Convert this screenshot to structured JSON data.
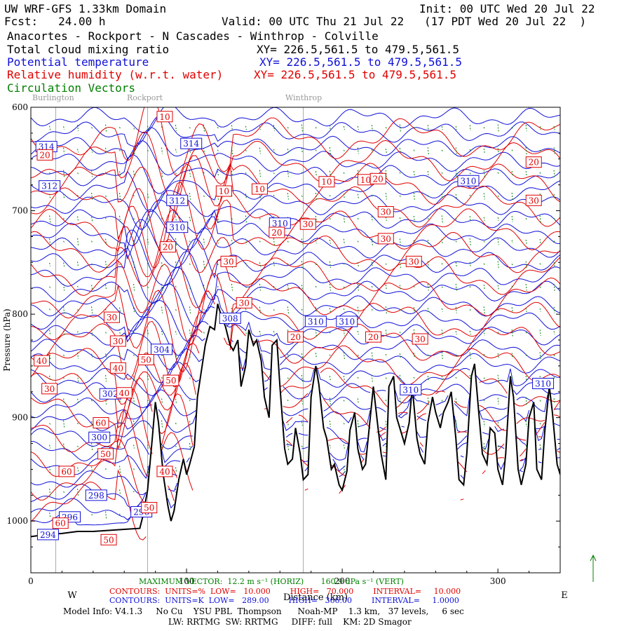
{
  "header": {
    "line1_left": "UW WRF-GFS 1.33km Domain",
    "line1_right": "Init: 00 UTC Wed 20 Jul 22",
    "line2_fcst": "Fcst:   24.00 h",
    "line2_valid": "Valid: 00 UTC Thu 21 Jul 22   (17 PDT Wed 20 Jul 22  )",
    "route": "Anacortes - Rockport - N Cascades - Winthrop - Colville",
    "fields": [
      {
        "label": "Total cloud mixing ratio",
        "xy": "XY= 226.5,561.5 to 479.5,561.5",
        "color": "#000000"
      },
      {
        "label": "Potential temperature",
        "xy": "XY= 226.5,561.5 to 479.5,561.5",
        "color": "#1010d8"
      },
      {
        "label": "Relative humidity (w.r.t. water)",
        "xy": "XY= 226.5,561.5 to 479.5,561.5",
        "color": "#e00000"
      },
      {
        "label": "Circulation Vectors",
        "xy": "",
        "color": "#008000"
      }
    ],
    "locations": [
      "Burlington",
      "Rockport",
      "Winthrop"
    ]
  },
  "chart_data": {
    "type": "line",
    "xlabel": "Distance (km)",
    "ylabel": "Pressure (hPa)",
    "xlim": [
      0,
      340
    ],
    "ylim": [
      1050,
      600
    ],
    "x_ticks": [
      "0",
      "100",
      "200",
      "300"
    ],
    "y_ticks": [
      "600",
      "700",
      "800",
      "900",
      "1000"
    ],
    "direction_left": "W",
    "direction_right": "E",
    "terrain_series": {
      "name": "terrain",
      "x": [
        0,
        10,
        20,
        30,
        40,
        50,
        60,
        70,
        72,
        75,
        78,
        80,
        82,
        85,
        88,
        90,
        92,
        95,
        98,
        100,
        102,
        105,
        107,
        110,
        112,
        115,
        118,
        120,
        122,
        125,
        128,
        130,
        133,
        135,
        138,
        140,
        143,
        145,
        148,
        150,
        153,
        155,
        158,
        160,
        163,
        165,
        168,
        170,
        173,
        175,
        178,
        180,
        183,
        185,
        188,
        190,
        193,
        195,
        198,
        200,
        203,
        205,
        208,
        210,
        213,
        215,
        218,
        220,
        223,
        225,
        228,
        230,
        233,
        235,
        238,
        240,
        243,
        245,
        248,
        250,
        253,
        255,
        258,
        260,
        263,
        265,
        268,
        270,
        273,
        275,
        278,
        280,
        283,
        285,
        288,
        290,
        293,
        295,
        298,
        300,
        303,
        305,
        308,
        310,
        313,
        315,
        318,
        320,
        323,
        325,
        328,
        330,
        333,
        335,
        338,
        340
      ],
      "y": [
        1015,
        1013,
        1012,
        1010,
        1010,
        1009,
        1008,
        1007,
        995,
        970,
        920,
        885,
        905,
        955,
        985,
        1000,
        990,
        960,
        940,
        955,
        945,
        928,
        880,
        850,
        830,
        812,
        815,
        790,
        800,
        812,
        830,
        835,
        825,
        870,
        850,
        815,
        830,
        825,
        845,
        880,
        900,
        830,
        825,
        870,
        930,
        945,
        940,
        910,
        935,
        960,
        955,
        880,
        850,
        868,
        910,
        920,
        950,
        945,
        965,
        970,
        952,
        912,
        895,
        930,
        950,
        945,
        900,
        870,
        910,
        935,
        960,
        870,
        860,
        900,
        915,
        925,
        905,
        870,
        920,
        935,
        945,
        905,
        880,
        895,
        910,
        895,
        885,
        875,
        920,
        960,
        965,
        935,
        860,
        848,
        900,
        935,
        945,
        910,
        915,
        950,
        965,
        935,
        860,
        880,
        950,
        965,
        945,
        900,
        885,
        950,
        960,
        915,
        870,
        895,
        945,
        955
      ]
    },
    "potential_temperature": {
      "units": "K",
      "low": 289.0,
      "high": 366.0,
      "interval": 1.0,
      "labels": [
        {
          "text": "314",
          "x": 10,
          "y": 638
        },
        {
          "text": "312",
          "x": 12,
          "y": 676
        },
        {
          "text": "314",
          "x": 103,
          "y": 635
        },
        {
          "text": "312",
          "x": 94,
          "y": 690
        },
        {
          "text": "310",
          "x": 94,
          "y": 716
        },
        {
          "text": "310",
          "x": 160,
          "y": 712
        },
        {
          "text": "308",
          "x": 128,
          "y": 804
        },
        {
          "text": "304",
          "x": 84,
          "y": 834
        },
        {
          "text": "302",
          "x": 51,
          "y": 877
        },
        {
          "text": "300",
          "x": 44,
          "y": 919
        },
        {
          "text": "298",
          "x": 42,
          "y": 975
        },
        {
          "text": "296",
          "x": 25,
          "y": 996
        },
        {
          "text": "294",
          "x": 11,
          "y": 1013
        },
        {
          "text": "296",
          "x": 71,
          "y": 991
        },
        {
          "text": "310",
          "x": 183,
          "y": 807
        },
        {
          "text": "310",
          "x": 203,
          "y": 807
        },
        {
          "text": "310",
          "x": 281,
          "y": 671
        },
        {
          "text": "310",
          "x": 244,
          "y": 873
        },
        {
          "text": "310",
          "x": 329,
          "y": 867
        }
      ]
    },
    "relative_humidity": {
      "units": "%",
      "low": 10.0,
      "high": 70.0,
      "interval": 10.0,
      "labels": [
        {
          "text": "10",
          "x": 86,
          "y": 609
        },
        {
          "text": "20",
          "x": 9,
          "y": 646
        },
        {
          "text": "10",
          "x": 124,
          "y": 681
        },
        {
          "text": "10",
          "x": 147,
          "y": 679
        },
        {
          "text": "10",
          "x": 190,
          "y": 672
        },
        {
          "text": "10",
          "x": 215,
          "y": 670
        },
        {
          "text": "20",
          "x": 223,
          "y": 669
        },
        {
          "text": "20",
          "x": 323,
          "y": 653
        },
        {
          "text": "30",
          "x": 323,
          "y": 690
        },
        {
          "text": "30",
          "x": 228,
          "y": 701
        },
        {
          "text": "30",
          "x": 178,
          "y": 713
        },
        {
          "text": "20",
          "x": 158,
          "y": 721
        },
        {
          "text": "30",
          "x": 228,
          "y": 727
        },
        {
          "text": "20",
          "x": 88,
          "y": 735
        },
        {
          "text": "30",
          "x": 127,
          "y": 749
        },
        {
          "text": "30",
          "x": 246,
          "y": 749
        },
        {
          "text": "30",
          "x": 137,
          "y": 789
        },
        {
          "text": "30",
          "x": 52,
          "y": 803
        },
        {
          "text": "30",
          "x": 56,
          "y": 826
        },
        {
          "text": "20",
          "x": 170,
          "y": 822
        },
        {
          "text": "20",
          "x": 220,
          "y": 822
        },
        {
          "text": "30",
          "x": 250,
          "y": 824
        },
        {
          "text": "40",
          "x": 56,
          "y": 852
        },
        {
          "text": "50",
          "x": 74,
          "y": 844
        },
        {
          "text": "40",
          "x": 7,
          "y": 845
        },
        {
          "text": "30",
          "x": 12,
          "y": 872
        },
        {
          "text": "50",
          "x": 90,
          "y": 864
        },
        {
          "text": "40",
          "x": 60,
          "y": 876
        },
        {
          "text": "60",
          "x": 45,
          "y": 905
        },
        {
          "text": "50",
          "x": 48,
          "y": 935
        },
        {
          "text": "60",
          "x": 23,
          "y": 952
        },
        {
          "text": "40",
          "x": 86,
          "y": 952
        },
        {
          "text": "50",
          "x": 76,
          "y": 987
        },
        {
          "text": "60",
          "x": 19,
          "y": 1002
        },
        {
          "text": "50",
          "x": 50,
          "y": 1018
        }
      ]
    }
  },
  "footer": {
    "max_vector": "MAXIMUM VECTOR:  12.2 m s⁻¹ (HORIZ)       160.9 dPa s⁻¹ (VERT)",
    "rh_contours": "CONTOURS:  UNITS=%  LOW=   10.000        HIGH=   70.000        INTERVAL=     10.000",
    "th_contours": "CONTOURS:  UNITS=K  LOW=   289.00        HIGH=   366.00        INTERVAL=     1.0000",
    "model_info": "Model Info: V4.1.3     No Cu    YSU PBL  Thompson      Noah-MP    1.3 km,   37 levels,     6 sec",
    "model_info2": "LW: RRTMG  SW: RRTMG     DIFF: full    KM: 2D Smagor"
  }
}
